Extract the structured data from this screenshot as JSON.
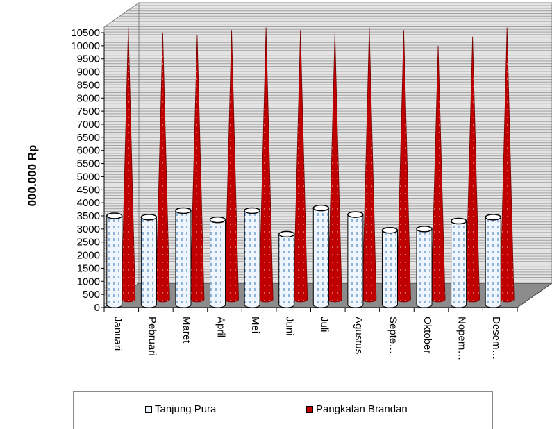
{
  "chart_data": {
    "type": "bar",
    "title": "",
    "xlabel": "",
    "ylabel": "000.000 Rp",
    "ylim": [
      0,
      10500
    ],
    "ytick_step": 500,
    "grid": true,
    "legend_position": "bottom",
    "categories": [
      "Januari",
      "Pebruari",
      "Maret",
      "April",
      "Mei",
      "Juni",
      "Juli",
      "Agustus",
      "Septe…",
      "Oktober",
      "Nopem…",
      "Desem…"
    ],
    "series": [
      {
        "name": "Tanjung Pura",
        "color": "#eaf3fb",
        "accent": "#2e75b6",
        "shape": "cylinder",
        "values": [
          3500,
          3450,
          3700,
          3350,
          3700,
          2800,
          3800,
          3550,
          2950,
          3000,
          3300,
          3450
        ]
      },
      {
        "name": "Pangkalan Brandan",
        "color": "#c00000",
        "shape": "cone",
        "values": [
          10700,
          10500,
          10400,
          10600,
          10700,
          10600,
          10500,
          10700,
          10600,
          10000,
          10350,
          10700
        ]
      }
    ]
  }
}
